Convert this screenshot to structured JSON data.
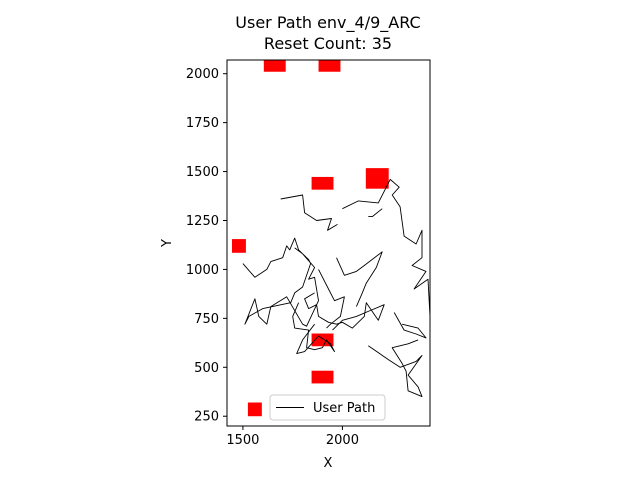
{
  "chart_data": {
    "type": "scatter",
    "title": "User Path env_4/9_ARC",
    "subtitle": "Reset Count: 35",
    "xlabel": "X",
    "ylabel": "Y",
    "xlim": [
      1420,
      2440
    ],
    "ylim": [
      200,
      2070
    ],
    "xticks": [
      1500,
      2000
    ],
    "yticks": [
      250,
      500,
      750,
      1000,
      1250,
      1500,
      1750,
      2000
    ],
    "grid": false,
    "legend": {
      "position": "bottom-center",
      "entries": [
        "User Path"
      ]
    },
    "colors": {
      "path": "#000000",
      "obstacle": "#ff0000",
      "axes": "#000000"
    },
    "obstacles": [
      {
        "x": 1660,
        "y": 2045,
        "w": 110,
        "h": 70
      },
      {
        "x": 1935,
        "y": 2045,
        "w": 110,
        "h": 70
      },
      {
        "x": 2175,
        "y": 1465,
        "w": 115,
        "h": 105
      },
      {
        "x": 1900,
        "y": 1440,
        "w": 110,
        "h": 65
      },
      {
        "x": 1480,
        "y": 1120,
        "w": 70,
        "h": 70
      },
      {
        "x": 1900,
        "y": 640,
        "w": 110,
        "h": 65
      },
      {
        "x": 1900,
        "y": 450,
        "w": 110,
        "h": 65
      },
      {
        "x": 1560,
        "y": 285,
        "w": 70,
        "h": 70
      }
    ],
    "series": [
      {
        "name": "User Path",
        "segments": [
          [
            [
              1690,
              1360
            ],
            [
              1800,
              1380
            ],
            [
              1810,
              1290
            ],
            [
              1870,
              1250
            ],
            [
              1945,
              1260
            ],
            [
              1925,
              1200
            ],
            [
              1975,
              1230
            ]
          ],
          [
            [
              2000,
              1310
            ],
            [
              2080,
              1350
            ],
            [
              2180,
              1340
            ],
            [
              2240,
              1460
            ],
            [
              2285,
              1420
            ],
            [
              2250,
              1380
            ],
            [
              2290,
              1320
            ],
            [
              2310,
              1170
            ],
            [
              2370,
              1130
            ],
            [
              2400,
              1200
            ],
            [
              2400,
              1060
            ],
            [
              2350,
              1020
            ],
            [
              2420,
              990
            ],
            [
              2360,
              900
            ],
            [
              2430,
              950
            ],
            [
              2440,
              760
            ]
          ],
          [
            [
              2200,
              1310
            ],
            [
              2150,
              1270
            ],
            [
              2130,
              1270
            ]
          ],
          [
            [
              1500,
              1030
            ],
            [
              1560,
              960
            ],
            [
              1620,
              1000
            ],
            [
              1640,
              1040
            ],
            [
              1700,
              1060
            ],
            [
              1720,
              1120
            ],
            [
              1735,
              1100
            ],
            [
              1760,
              1160
            ],
            [
              1780,
              1100
            ],
            [
              1830,
              1050
            ],
            [
              1840,
              1030
            ],
            [
              1800,
              910
            ],
            [
              1760,
              880
            ],
            [
              1740,
              830
            ],
            [
              1600,
              800
            ],
            [
              1530,
              760
            ],
            [
              1510,
              720
            ],
            [
              1560,
              850
            ],
            [
              1580,
              760
            ],
            [
              1620,
              720
            ],
            [
              1640,
              810
            ],
            [
              1720,
              860
            ],
            [
              1800,
              720
            ],
            [
              1820,
              710
            ],
            [
              1880,
              840
            ],
            [
              1860,
              960
            ],
            [
              1830,
              950
            ],
            [
              1860,
              1010
            ],
            [
              1800,
              1080
            ],
            [
              1760,
              1110
            ]
          ],
          [
            [
              1880,
              1000
            ],
            [
              1930,
              900
            ],
            [
              1960,
              840
            ],
            [
              2010,
              860
            ],
            [
              1990,
              760
            ],
            [
              1940,
              720
            ],
            [
              1920,
              700
            ]
          ],
          [
            [
              1970,
              1060
            ],
            [
              2010,
              970
            ],
            [
              2070,
              990
            ],
            [
              2110,
              1020
            ],
            [
              2200,
              1090
            ],
            [
              2170,
              1010
            ],
            [
              2120,
              930
            ],
            [
              2100,
              880
            ],
            [
              2070,
              810
            ]
          ],
          [
            [
              1860,
              880
            ],
            [
              1810,
              850
            ],
            [
              1830,
              800
            ],
            [
              1870,
              820
            ],
            [
              1880,
              760
            ],
            [
              1930,
              730
            ],
            [
              1970,
              720
            ],
            [
              2000,
              730
            ],
            [
              2050,
              700
            ],
            [
              2110,
              760
            ],
            [
              2120,
              830
            ],
            [
              2180,
              740
            ],
            [
              2210,
              820
            ],
            [
              2140,
              790
            ],
            [
              2070,
              760
            ],
            [
              2000,
              740
            ],
            [
              1950,
              690
            ]
          ],
          [
            [
              1780,
              830
            ],
            [
              1750,
              760
            ],
            [
              1760,
              700
            ],
            [
              1830,
              690
            ],
            [
              1820,
              600
            ],
            [
              1860,
              590
            ],
            [
              1900,
              600
            ],
            [
              1920,
              640
            ],
            [
              1960,
              580
            ],
            [
              1940,
              620
            ],
            [
              1880,
              660
            ],
            [
              1810,
              580
            ],
            [
              1770,
              570
            ],
            [
              1800,
              640
            ],
            [
              1860,
              720
            ]
          ],
          [
            [
              2130,
              610
            ],
            [
              2230,
              540
            ],
            [
              2290,
              500
            ],
            [
              2370,
              530
            ],
            [
              2400,
              560
            ],
            [
              2330,
              460
            ],
            [
              2380,
              400
            ],
            [
              2400,
              350
            ],
            [
              2330,
              380
            ],
            [
              2320,
              480
            ],
            [
              2300,
              520
            ],
            [
              2250,
              600
            ],
            [
              2330,
              620
            ],
            [
              2380,
              640
            ]
          ],
          [
            [
              2260,
              780
            ],
            [
              2310,
              690
            ],
            [
              2370,
              670
            ],
            [
              2420,
              650
            ],
            [
              2380,
              700
            ],
            [
              2300,
              720
            ]
          ]
        ]
      }
    ]
  }
}
